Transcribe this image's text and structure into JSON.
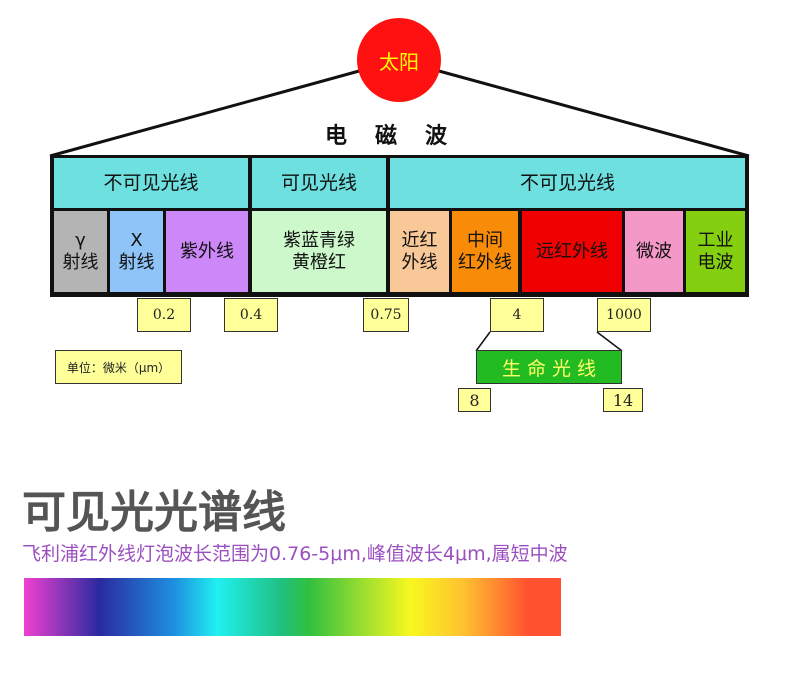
{
  "sun": "太阳",
  "em_wave": "电磁波",
  "headers": [
    "不可见光线",
    "可见光线",
    "不可见光线"
  ],
  "cells": [
    {
      "label": "γ\n射线",
      "color": "#b4b4b4"
    },
    {
      "label": "X\n射线",
      "color": "#8ec4f8"
    },
    {
      "label": "紫外线",
      "color": "#cc88f8"
    },
    {
      "label": "紫蓝青绿\n黄橙红",
      "color": "#ccf8cc"
    },
    {
      "label": "近红\n外线",
      "color": "#f8c898"
    },
    {
      "label": "中间\n红外线",
      "color": "#f88c08"
    },
    {
      "label": "远红外线",
      "color": "#f00000"
    },
    {
      "label": "微波",
      "color": "#f498c8"
    },
    {
      "label": "工业\n电波",
      "color": "#84d010"
    }
  ],
  "boundaries": [
    "0.2",
    "0.4",
    "0.75",
    "4",
    "1000"
  ],
  "unit": "单位：微米（μm）",
  "life_light": "生 命 光 线",
  "life_range": [
    "8",
    "14"
  ],
  "title": "可见光光谱线",
  "subtitle": "飞利浦红外线灯泡波长范围为0.76-5μm,峰值波长4μm,属短中波"
}
